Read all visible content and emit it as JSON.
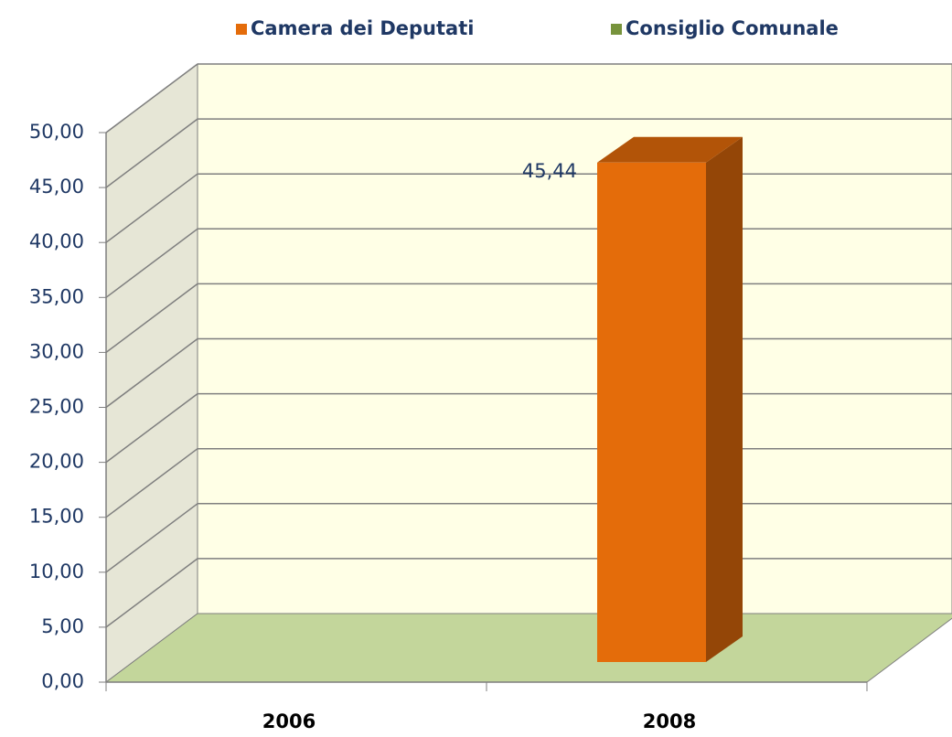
{
  "chart_data": {
    "type": "bar3d",
    "categories": [
      "2006",
      "2008"
    ],
    "series": [
      {
        "name": "Camera dei Deputati",
        "color": "#e46c0a",
        "values": [
          null,
          45.44
        ],
        "value_labels": [
          null,
          "45,44"
        ]
      },
      {
        "name": "Consiglio Comunale",
        "color": "#77933c",
        "values": [
          null,
          null
        ]
      }
    ],
    "ylim": [
      0,
      50
    ],
    "yticks": [
      {
        "value": 0,
        "label": "0,00"
      },
      {
        "value": 5,
        "label": "5,00"
      },
      {
        "value": 10,
        "label": "10,00"
      },
      {
        "value": 15,
        "label": "15,00"
      },
      {
        "value": 20,
        "label": "20,00"
      },
      {
        "value": 25,
        "label": "25,00"
      },
      {
        "value": 30,
        "label": "30,00"
      },
      {
        "value": 35,
        "label": "35,00"
      },
      {
        "value": 40,
        "label": "40,00"
      },
      {
        "value": 45,
        "label": "45,00"
      },
      {
        "value": 50,
        "label": "50,00"
      }
    ],
    "grid": true,
    "legend": "top"
  }
}
